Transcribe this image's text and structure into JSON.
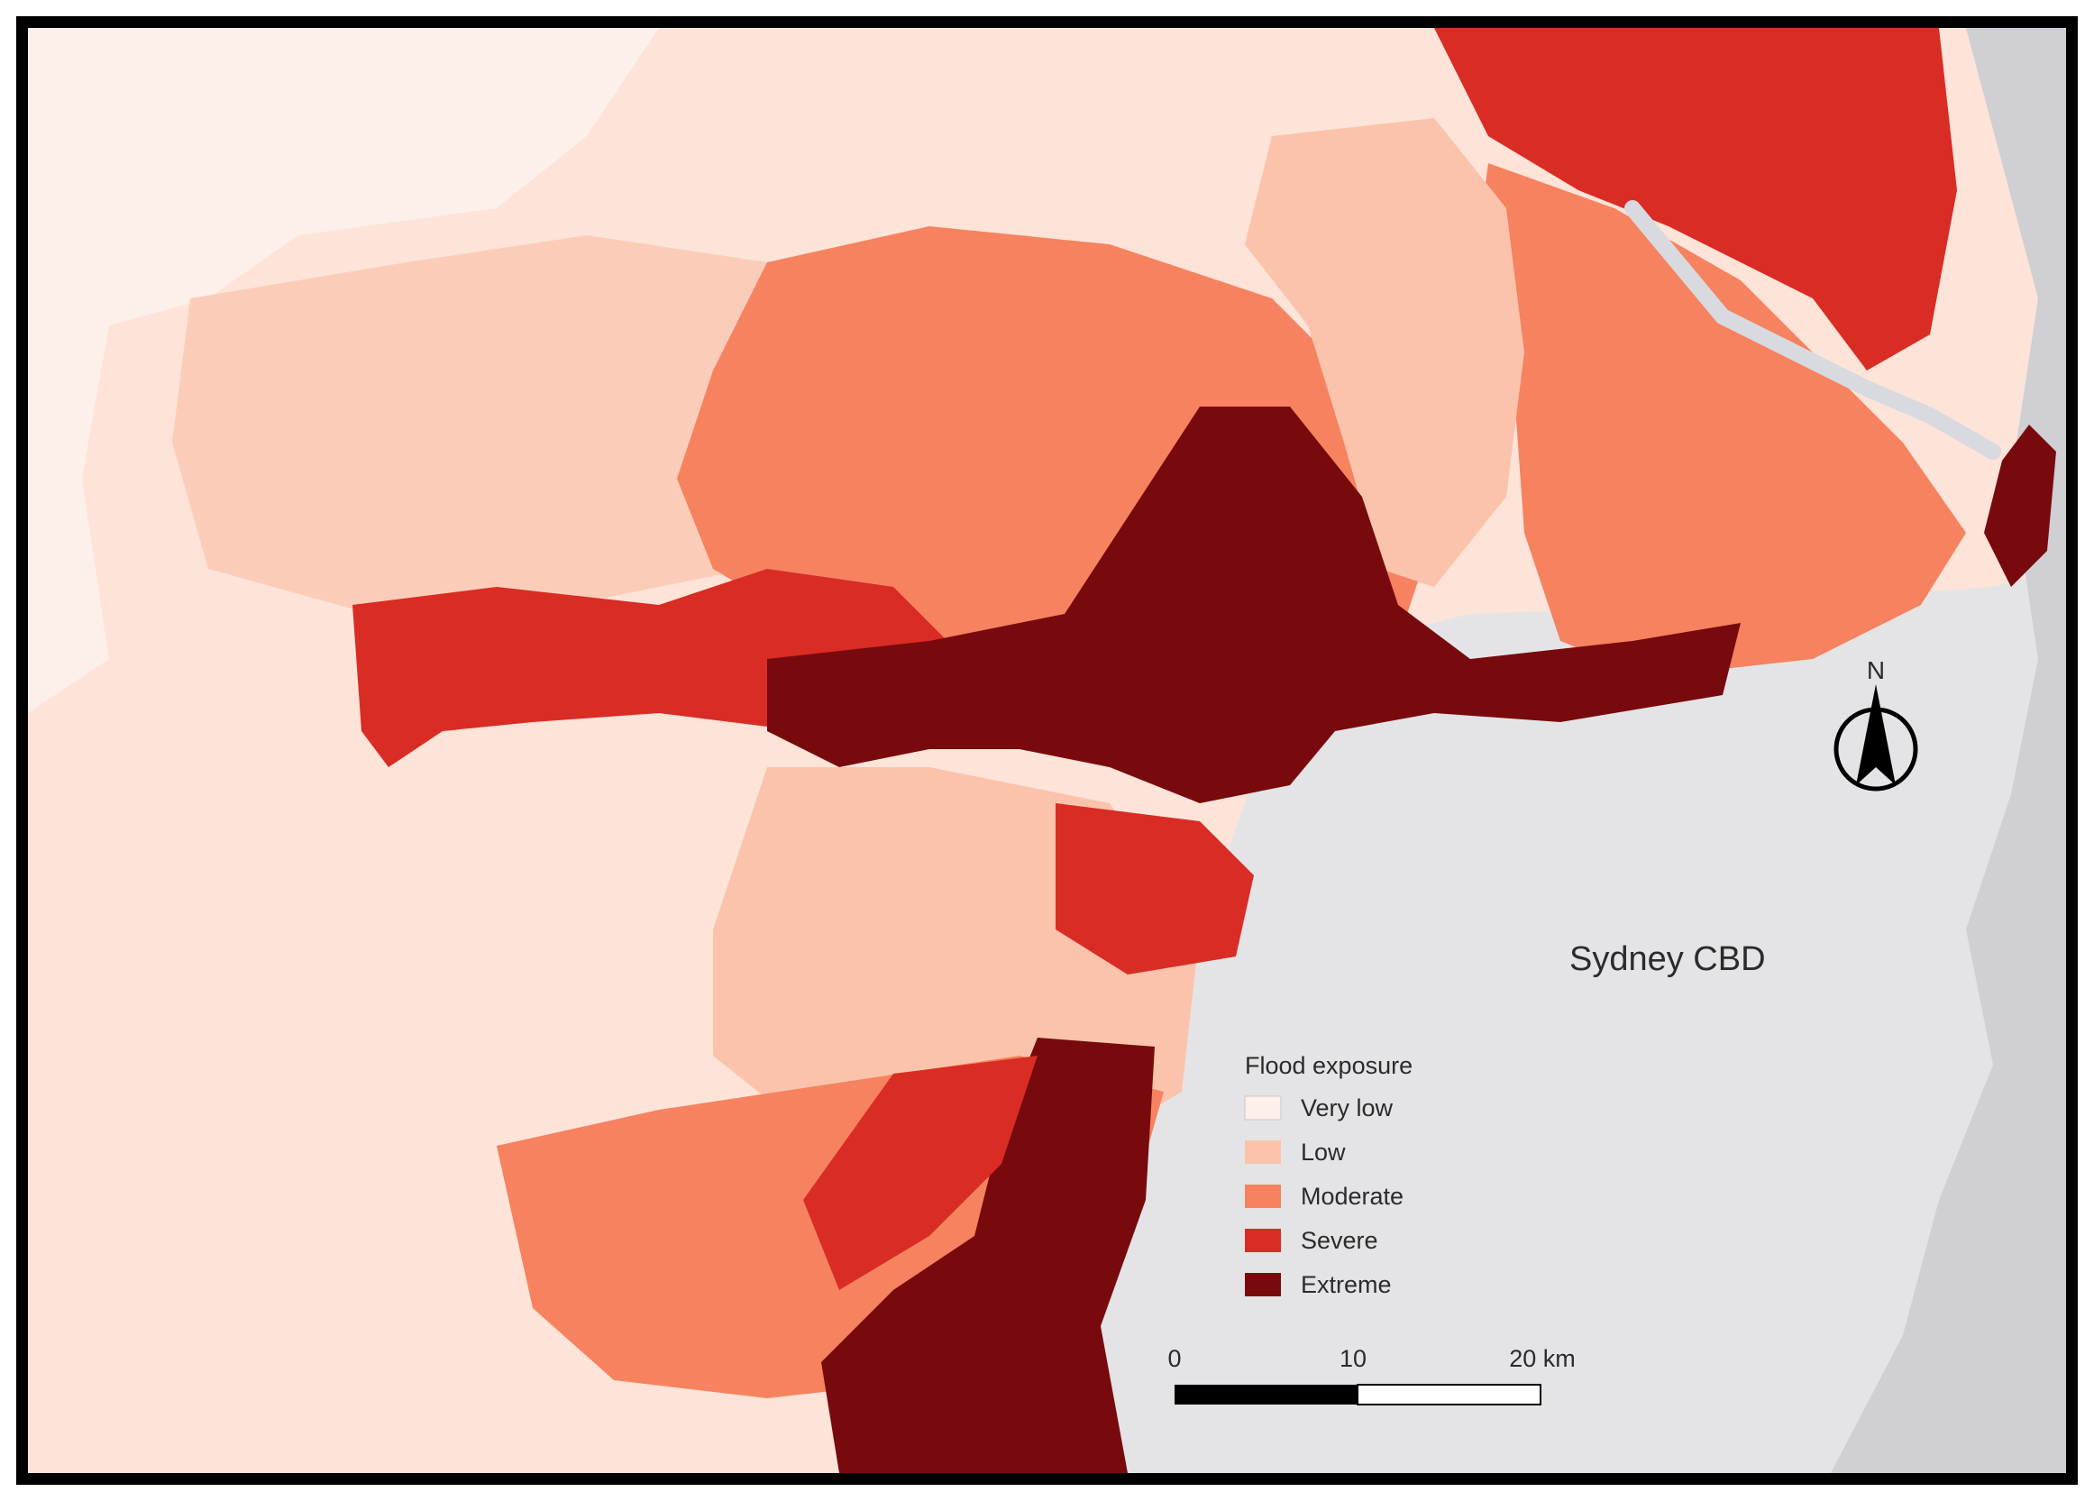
{
  "map": {
    "city_label": "Sydney CBD",
    "north_label": "N",
    "legend": {
      "title": "Flood exposure",
      "items": [
        {
          "label": "Very low",
          "color": "#fdefe9"
        },
        {
          "label": "Low",
          "color": "#fbc3ab"
        },
        {
          "label": "Moderate",
          "color": "#f6825f"
        },
        {
          "label": "Severe",
          "color": "#d92c24"
        },
        {
          "label": "Extreme",
          "color": "#780a0e"
        }
      ]
    },
    "scale_bar": {
      "tick_labels": [
        "0",
        "10",
        "20 km"
      ],
      "unit": "km"
    },
    "colors": {
      "base_land": "#fde3d8",
      "urban_gray": "#e4e4e6",
      "ocean_gray": "#cfcfd4",
      "water": "#d8dadf"
    }
  }
}
